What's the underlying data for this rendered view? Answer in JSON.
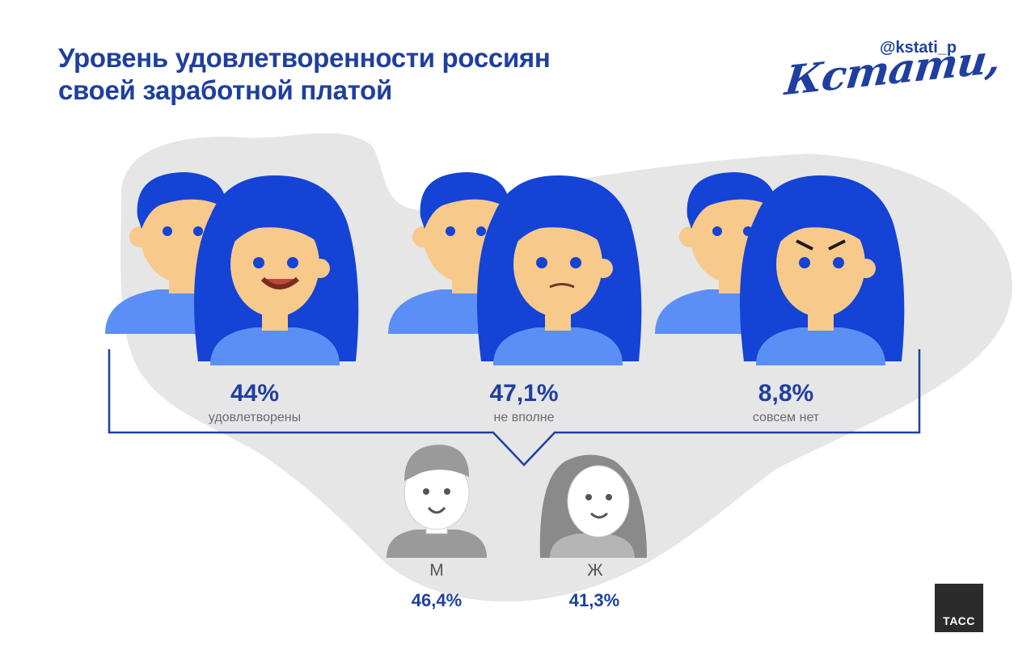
{
  "header": {
    "title_line1": "Уровень удовлетворенности россиян",
    "title_line2": "своей заработной платой",
    "handle": "@kstati_p",
    "brand": "Кстати,"
  },
  "groups": [
    {
      "percent": "44%",
      "label": "удовлетворены",
      "value": 44,
      "mood": "happy"
    },
    {
      "percent": "47,1%",
      "label": "не вполне",
      "value": 47.1,
      "mood": "neutral"
    },
    {
      "percent": "8,8%",
      "label": "совсем нет",
      "value": 8.8,
      "mood": "angry"
    }
  ],
  "gender_breakdown": {
    "male": {
      "label": "М",
      "percent": "46,4%",
      "value": 46.4
    },
    "female": {
      "label": "Ж",
      "percent": "41,3%",
      "value": 41.3
    }
  },
  "footer": {
    "logo": "ТАСС"
  },
  "colors": {
    "accent": "#1f3fa0",
    "hair": "#1443d6",
    "skin": "#f7c98a",
    "shirt": "#5b8ff5",
    "blob": "#e6e6e7",
    "gray_figure": "#9a9a9a"
  }
}
